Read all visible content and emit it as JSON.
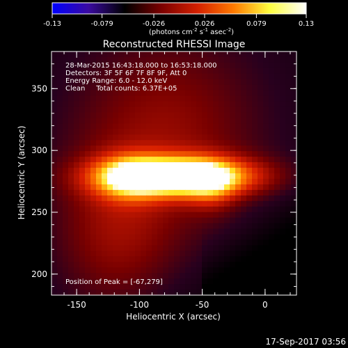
{
  "colorbar": {
    "tick_labels": [
      "-0.13",
      "-0.079",
      "-0.026",
      "0.026",
      "0.079",
      "0.13"
    ],
    "tick_values": [
      -0.13,
      -0.079,
      -0.026,
      0.026,
      0.079,
      0.13
    ],
    "range": [
      -0.13,
      0.13
    ],
    "units_prefix": "(photons cm",
    "units_exp1": "-2",
    "units_mid": " s",
    "units_exp2": "-1",
    "units_mid2": " asec",
    "units_exp3": "-2",
    "units_suffix": ")",
    "colors": [
      "#0000ff",
      "#3a0aa0",
      "#000000",
      "#7a0000",
      "#d42000",
      "#ff7a00",
      "#ffff40",
      "#ffffff"
    ]
  },
  "chart_data": {
    "type": "heatmap",
    "title": "Reconstructed RHESSI Image",
    "xlabel": "Heliocentric X (arcsec)",
    "ylabel": "Heliocentric Y (arcsec)",
    "xlim": [
      -170,
      25
    ],
    "ylim": [
      183,
      380
    ],
    "x_ticks": [
      -150,
      -100,
      -50,
      0
    ],
    "y_ticks": [
      200,
      250,
      300,
      350
    ],
    "annotations": [
      "28-Mar-2015 16:43:18.000 to 16:53:18.000",
      "Detectors: 3F 5F 6F 7F 8F 9F, Att 0",
      "Energy Range: 6.0 - 12.0 keV",
      "Clean     Total counts: 6.37E+05"
    ],
    "peak_label": "Position of Peak = [-67,279]",
    "peak": [
      -67,
      279
    ],
    "sources": [
      {
        "x": -68,
        "y": 279,
        "sx": 42,
        "sy": 11,
        "amp": 0.13
      },
      {
        "x": -110,
        "y": 278,
        "sx": 18,
        "sy": 13,
        "amp": 0.04
      },
      {
        "x": -42,
        "y": 270,
        "sx": 14,
        "sy": 14,
        "amp": 0.03
      },
      {
        "x": -78,
        "y": 315,
        "sx": 55,
        "sy": 60,
        "amp": 0.035
      },
      {
        "x": -120,
        "y": 230,
        "sx": 35,
        "sy": 45,
        "amp": 0.03
      }
    ]
  },
  "footer": {
    "timestamp": "17-Sep-2017 03:56"
  }
}
